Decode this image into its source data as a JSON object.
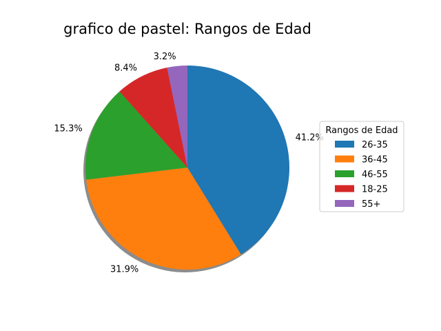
{
  "chart_data": {
    "type": "pie",
    "title": "grafico de pastel: Rangos de Edad",
    "legend_title": "Rangos de Edad",
    "legend_placement": "right",
    "start_angle_deg": 90,
    "direction": "clockwise",
    "shadow": true,
    "slices": [
      {
        "label": "26-35",
        "value": 41.2,
        "pct_label": "41.2%",
        "color": "#1f77b4"
      },
      {
        "label": "36-45",
        "value": 31.9,
        "pct_label": "31.9%",
        "color": "#ff7f0e"
      },
      {
        "label": "46-55",
        "value": 15.3,
        "pct_label": "15.3%",
        "color": "#2ca02c"
      },
      {
        "label": "18-25",
        "value": 8.4,
        "pct_label": "8.4%",
        "color": "#d62728"
      },
      {
        "label": "55+",
        "value": 3.2,
        "pct_label": "3.2%",
        "color": "#9467bd"
      }
    ]
  }
}
